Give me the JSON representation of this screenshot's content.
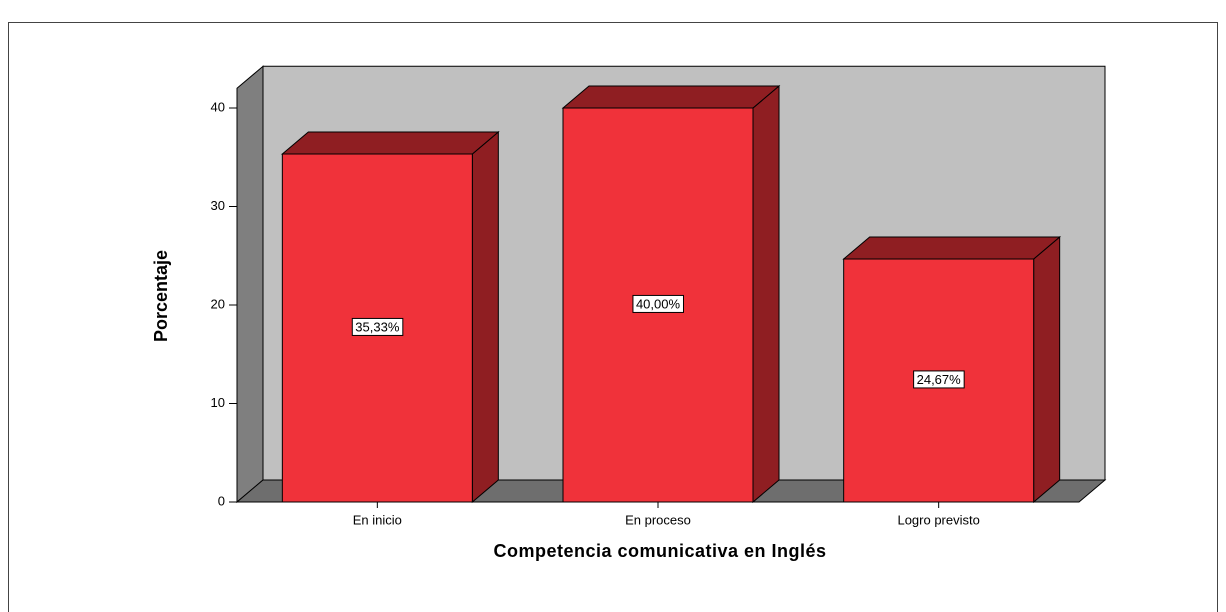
{
  "chart_data": {
    "type": "bar3d",
    "x_label": "Competencia comunicativa en Inglés",
    "y_label": "Porcentaje",
    "categories": [
      "En inicio",
      "En proceso",
      "Logro previsto"
    ],
    "values": [
      35.33,
      40,
      24.67
    ],
    "value_labels": [
      "35,33%",
      "40,00%",
      "24,67%"
    ],
    "color": "#f0323a",
    "ylim": [
      0,
      42
    ],
    "yticks": [
      0,
      10,
      20,
      30,
      40
    ]
  }
}
